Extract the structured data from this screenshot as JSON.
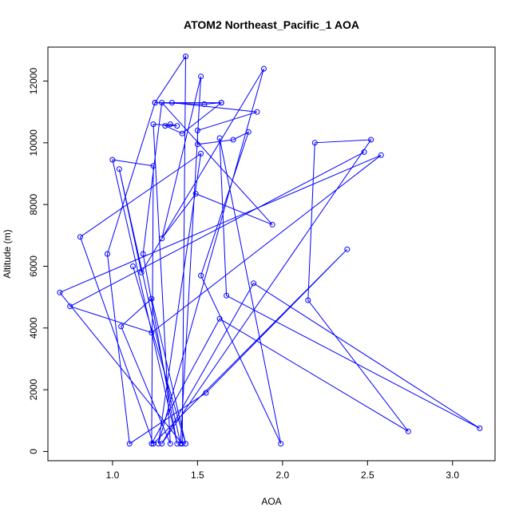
{
  "chart_data": {
    "type": "line",
    "title": "ATOM2 Northeast_Pacific_1 AOA",
    "xlabel": "AOA",
    "ylabel": "Altitude (m)",
    "xlim": [
      0.62,
      3.25
    ],
    "ylim": [
      -300,
      13100
    ],
    "xticks": [
      1.0,
      1.5,
      2.0,
      2.5,
      3.0
    ],
    "xtick_labels": [
      "1.0",
      "1.5",
      "2.0",
      "2.5",
      "3.0"
    ],
    "yticks": [
      0,
      2000,
      4000,
      6000,
      8000,
      10000,
      12000
    ],
    "ytick_labels": [
      "0",
      "2000",
      "4000",
      "6000",
      "8000",
      "10000",
      "12000"
    ],
    "series": [
      {
        "color": "#0000ff",
        "marker": "open-circle",
        "x": [
          2.48,
          0.75,
          1.23,
          2.58,
          0.69,
          1.41,
          1.43,
          1.25,
          0.97,
          1.1,
          1.55,
          2.38,
          1.24,
          0.81,
          1.52,
          1.27,
          1.89,
          1.17,
          1.04,
          1.4,
          1.52,
          1.29,
          1.49,
          1.94,
          1.29,
          1.18,
          1.38,
          1.0,
          1.24,
          1.23,
          1.63,
          2.74,
          2.15,
          2.19,
          2.52,
          1.29,
          1.83,
          3.16,
          1.67,
          1.63,
          1.99,
          1.52,
          1.8,
          1.71,
          1.5,
          1.5,
          1.85,
          1.35,
          1.64,
          1.54,
          1.25,
          1.64,
          1.41,
          1.31,
          1.34,
          1.38,
          1.24,
          1.34,
          1.05,
          1.23,
          1.43,
          1.12
        ],
        "y": [
          9700,
          4700,
          3850,
          9600,
          5150,
          250,
          12800,
          11300,
          6400,
          250,
          1900,
          6550,
          250,
          6950,
          9650,
          250,
          12400,
          5800,
          9150,
          250,
          12150,
          6900,
          8350,
          7350,
          11300,
          6400,
          250,
          9450,
          9250,
          250,
          4300,
          650,
          4900,
          10000,
          10100,
          250,
          5450,
          750,
          5050,
          10150,
          250,
          5700,
          10350,
          10100,
          9950,
          10400,
          11000,
          11300,
          11300,
          11250,
          11300,
          11300,
          10300,
          10550,
          10600,
          10550,
          10600,
          250,
          4050,
          4950,
          250,
          6000
        ]
      }
    ]
  }
}
